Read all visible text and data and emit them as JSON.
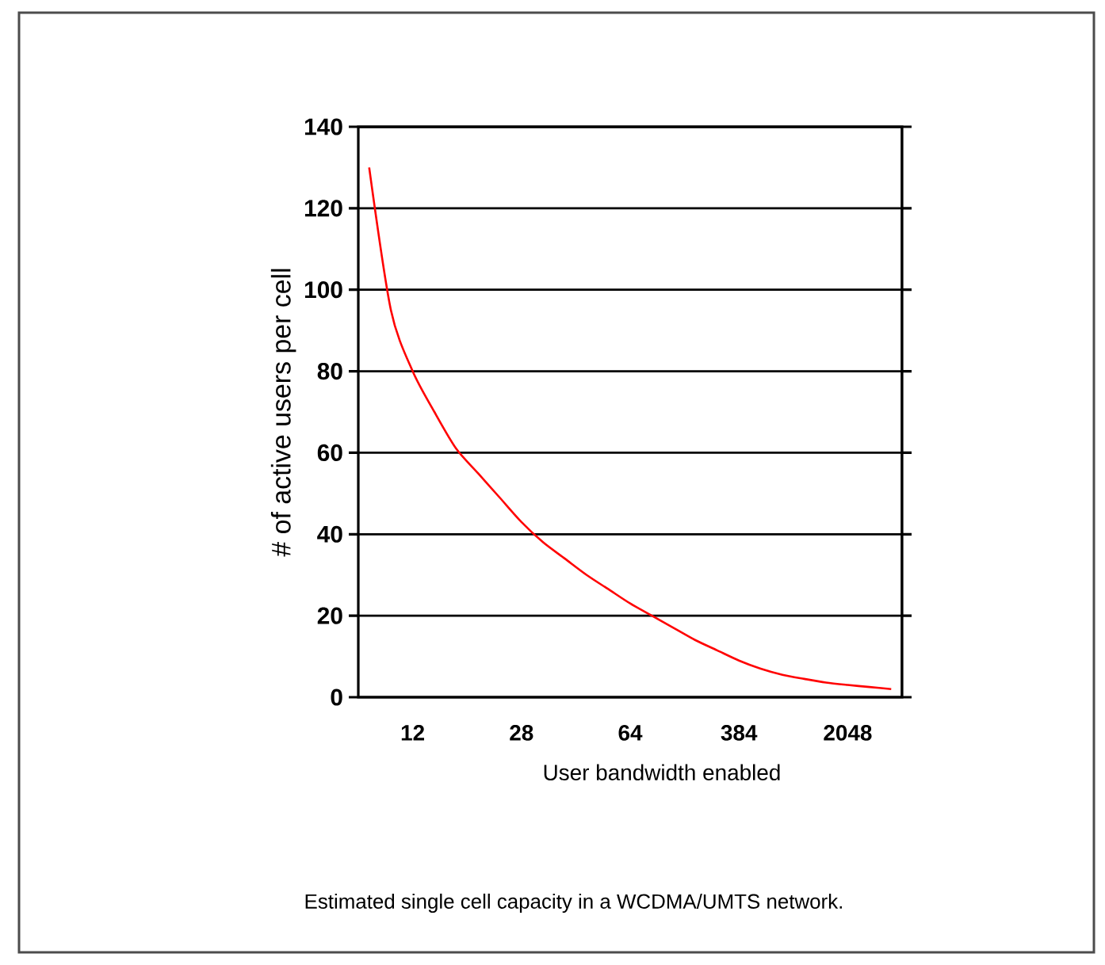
{
  "chart_data": {
    "type": "line",
    "xlabel": "User bandwidth enabled",
    "ylabel": "# of active users per cell",
    "annotations": [
      "Estimated single cell capacity in a WCDMA/UMTS network."
    ],
    "categories": [
      null,
      null,
      "12",
      null,
      null,
      null,
      null,
      "28",
      null,
      null,
      null,
      null,
      "64",
      null,
      null,
      null,
      null,
      "384",
      null,
      null,
      null,
      null,
      "2048",
      null,
      null
    ],
    "ylim": [
      0,
      140
    ],
    "yticks": [
      0,
      20,
      40,
      60,
      80,
      100,
      120,
      140
    ],
    "grid": "y",
    "marker": "none",
    "line_style": "solid",
    "series": [
      {
        "color": "#ff0000",
        "values": [
          130,
          95,
          80,
          70,
          61,
          55,
          49,
          43,
          38,
          34,
          30,
          26.5,
          23,
          20,
          17,
          14,
          11.5,
          9,
          7,
          5.5,
          4.5,
          3.6,
          3,
          2.5,
          2
        ]
      }
    ]
  }
}
